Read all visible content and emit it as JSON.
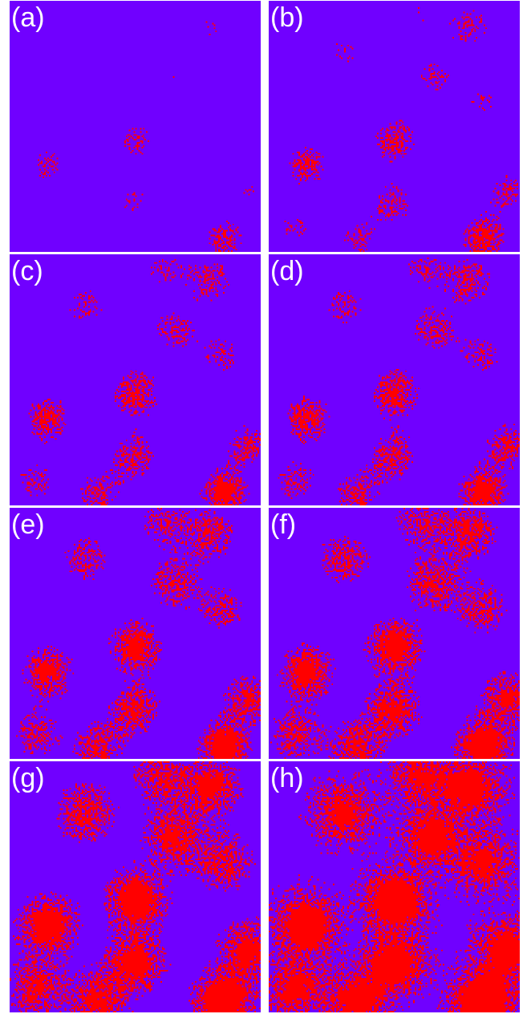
{
  "colors": {
    "background_phase": "#7000ff",
    "cluster_phase": "#ff0000",
    "separator": "#ffffff",
    "label": "#ffffff"
  },
  "panels": [
    {
      "label": "(a)",
      "cluster_fraction": 0.01
    },
    {
      "label": "(b)",
      "cluster_fraction": 0.04
    },
    {
      "label": "(c)",
      "cluster_fraction": 0.07
    },
    {
      "label": "(d)",
      "cluster_fraction": 0.09
    },
    {
      "label": "(e)",
      "cluster_fraction": 0.14
    },
    {
      "label": "(f)",
      "cluster_fraction": 0.2
    },
    {
      "label": "(g)",
      "cluster_fraction": 0.3
    },
    {
      "label": "(h)",
      "cluster_fraction": 0.45
    }
  ]
}
